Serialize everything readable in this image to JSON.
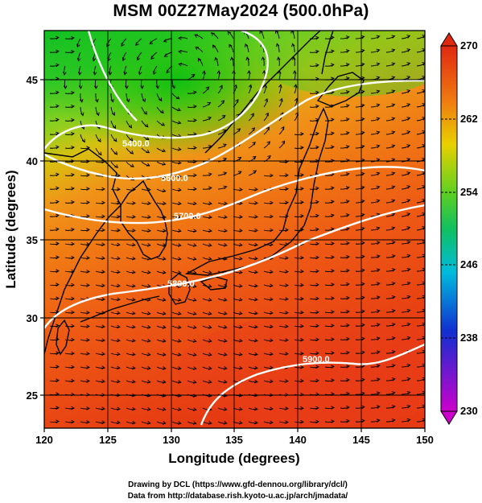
{
  "title": "MSM 00Z27May2024 (500.0hPa)",
  "map": {
    "xlabel": "Longitude (degrees)",
    "ylabel": "Latitude  (degrees)",
    "lon_range": [
      120,
      150
    ],
    "lat_range": [
      22.5,
      47.5
    ],
    "lon_ticks": [
      "120",
      "125",
      "130",
      "135",
      "140",
      "145",
      "150"
    ],
    "lat_ticks": [
      "25",
      "30",
      "35",
      "40",
      "45"
    ],
    "field": "temperature (shaded)",
    "vectors": "wind streamlines",
    "contours": [
      {
        "label": "5400.0"
      },
      {
        "label": "5600.0"
      },
      {
        "label": "5700.0"
      },
      {
        "label": "5800.0"
      },
      {
        "label": "5900.0"
      }
    ],
    "colors": {
      "cold": "#cc00cc",
      "blue": "#1030d0",
      "cyan": "#00bbdd",
      "green": "#20cc20",
      "yellow": "#e8d000",
      "orange": "#f07a10",
      "red": "#e02810"
    }
  },
  "colorbar": {
    "min": 230,
    "max": 270,
    "ticks": [
      "270",
      "262",
      "254",
      "246",
      "238",
      "230"
    ]
  },
  "credits": {
    "line1": "Drawing by DCL (https://www.gfd-dennou.org/library/dcl/)",
    "line2": "Data from http://database.rish.kyoto-u.ac.jp/arch/jmadata/"
  }
}
